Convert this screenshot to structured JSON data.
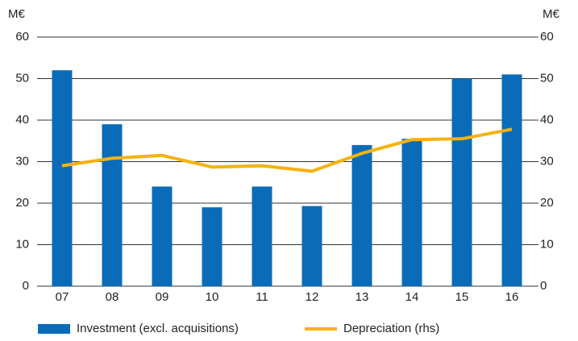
{
  "chart_data": {
    "type": "bar",
    "ylabel": "M€",
    "y2label": "M€",
    "categories": [
      "07",
      "08",
      "09",
      "10",
      "11",
      "12",
      "13",
      "14",
      "15",
      "16"
    ],
    "series": [
      {
        "name": "Investment (excl. acquisitions)",
        "color": "#0a6cb8",
        "type": "bar",
        "values": [
          52,
          39,
          24,
          19,
          24,
          19.3,
          34,
          35.5,
          50,
          51
        ]
      },
      {
        "name": "Depreciation (rhs)",
        "color": "#f5b210",
        "type": "line",
        "axis": "y2",
        "values": [
          29,
          30.8,
          31.5,
          28.7,
          29,
          27.7,
          32,
          35.3,
          35.5,
          37.8
        ]
      }
    ],
    "ylim": [
      0,
      60
    ],
    "yticks": [
      0,
      10,
      20,
      30,
      40,
      50,
      60
    ],
    "y2lim": [
      0,
      60
    ],
    "y2ticks": [
      0,
      10,
      20,
      30,
      40,
      50,
      60
    ],
    "grid": true,
    "legend": "bottom"
  }
}
